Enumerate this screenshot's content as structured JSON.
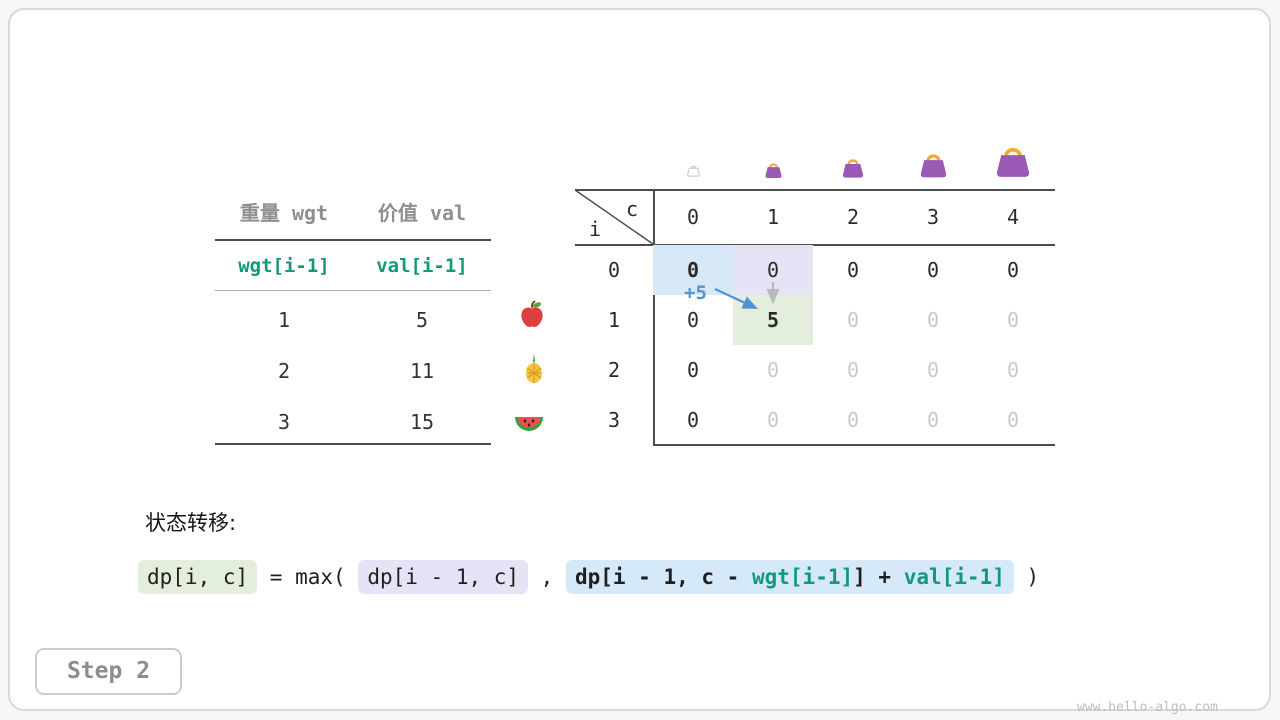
{
  "page": {
    "step_label": "Step 2",
    "watermark": "www.hello-algo.com"
  },
  "items_table": {
    "col1_header": "重量 wgt",
    "col2_header": "价值 val",
    "formula_row": {
      "wgt": "wgt[i-1]",
      "val": "val[i-1]"
    },
    "rows": [
      {
        "wgt": "1",
        "val": "5",
        "icon": "apple-icon"
      },
      {
        "wgt": "2",
        "val": "11",
        "icon": "pineapple-icon"
      },
      {
        "wgt": "3",
        "val": "15",
        "icon": "watermelon-icon"
      }
    ]
  },
  "dp_table": {
    "corner": {
      "top": "c",
      "bottom": "i"
    },
    "col_headers": [
      "0",
      "1",
      "2",
      "3",
      "4"
    ],
    "bag_icons": [
      "empty-bag-icon",
      "bag-icon-small",
      "bag-icon-medium",
      "bag-icon-large",
      "bag-icon-xlarge"
    ],
    "annotation": "+5",
    "rows": [
      {
        "header": "0",
        "cells": [
          {
            "v": "0",
            "tone": "dark",
            "hl": "blue",
            "bold": true
          },
          {
            "v": "0",
            "tone": "dark",
            "hl": "lavender"
          },
          {
            "v": "0",
            "tone": "dark"
          },
          {
            "v": "0",
            "tone": "dark"
          },
          {
            "v": "0",
            "tone": "dark"
          }
        ]
      },
      {
        "header": "1",
        "cells": [
          {
            "v": "0",
            "tone": "dark"
          },
          {
            "v": "5",
            "tone": "dark",
            "hl": "green",
            "bold": true
          },
          {
            "v": "0",
            "tone": "grey"
          },
          {
            "v": "0",
            "tone": "grey"
          },
          {
            "v": "0",
            "tone": "grey"
          }
        ]
      },
      {
        "header": "2",
        "cells": [
          {
            "v": "0",
            "tone": "dark"
          },
          {
            "v": "0",
            "tone": "grey"
          },
          {
            "v": "0",
            "tone": "grey"
          },
          {
            "v": "0",
            "tone": "grey"
          },
          {
            "v": "0",
            "tone": "grey"
          }
        ]
      },
      {
        "header": "3",
        "cells": [
          {
            "v": "0",
            "tone": "dark"
          },
          {
            "v": "0",
            "tone": "grey"
          },
          {
            "v": "0",
            "tone": "grey"
          },
          {
            "v": "0",
            "tone": "grey"
          },
          {
            "v": "0",
            "tone": "grey"
          }
        ]
      }
    ]
  },
  "transition": {
    "label": "状态转移:",
    "formula": [
      {
        "text": "dp[i, c]",
        "box": "green"
      },
      {
        "text": " = max( ",
        "box": null
      },
      {
        "text": "dp[i - 1, c]",
        "box": "lavender"
      },
      {
        "text": " , ",
        "box": null
      },
      {
        "box": "blue",
        "segments": [
          {
            "text": "dp[i - 1, c - ",
            "color": "dark",
            "bold": true
          },
          {
            "text": "wgt[i-1]",
            "color": "teal",
            "bold": true
          },
          {
            "text": "] + ",
            "color": "dark",
            "bold": true
          },
          {
            "text": "val[i-1]",
            "color": "teal",
            "bold": true
          }
        ]
      },
      {
        "text": " )",
        "box": null
      }
    ]
  },
  "colors": {
    "teal": "#12997c",
    "blue_accent": "#4f94d4",
    "hl_blue": "#d7e9f6",
    "hl_lavender": "#e5e4f6",
    "hl_green": "#e3efdc",
    "bag_purple": "#9b59b6",
    "bag_handle": "#f2a93b"
  }
}
